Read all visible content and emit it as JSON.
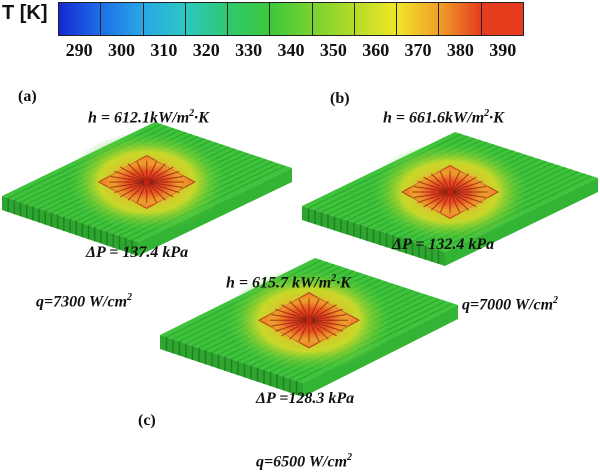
{
  "colorbar": {
    "title": "T [K]",
    "ticks": [
      "290",
      "300",
      "310",
      "320",
      "330",
      "340",
      "350",
      "360",
      "370",
      "380",
      "390"
    ],
    "colors": [
      "#1428d2",
      "#1e6ee6",
      "#28a8e6",
      "#2cc8c0",
      "#30c870",
      "#3cc83c",
      "#78d232",
      "#b4dc28",
      "#f0e628",
      "#f0a028",
      "#e63c1e"
    ]
  },
  "panels": [
    {
      "label": "(a)",
      "h_value": "h = 612.1kW/m",
      "h_unit_suffix": "·K",
      "dp": "ΔP = 137.4 kPa",
      "q_value": "q=7300 W/cm"
    },
    {
      "label": "(b)",
      "h_value": "h = 661.6kW/m",
      "h_unit_suffix": "·K",
      "dp": "ΔP = 132.4 kPa",
      "q_value": "q=7000 W/cm"
    },
    {
      "label": "(c)",
      "h_value": "h = 615.7 kW/m",
      "h_unit_suffix": "·K",
      "dp": "ΔP =128.3 kPa",
      "q_value": "q=6500 W/cm"
    }
  ],
  "superscript": "2"
}
